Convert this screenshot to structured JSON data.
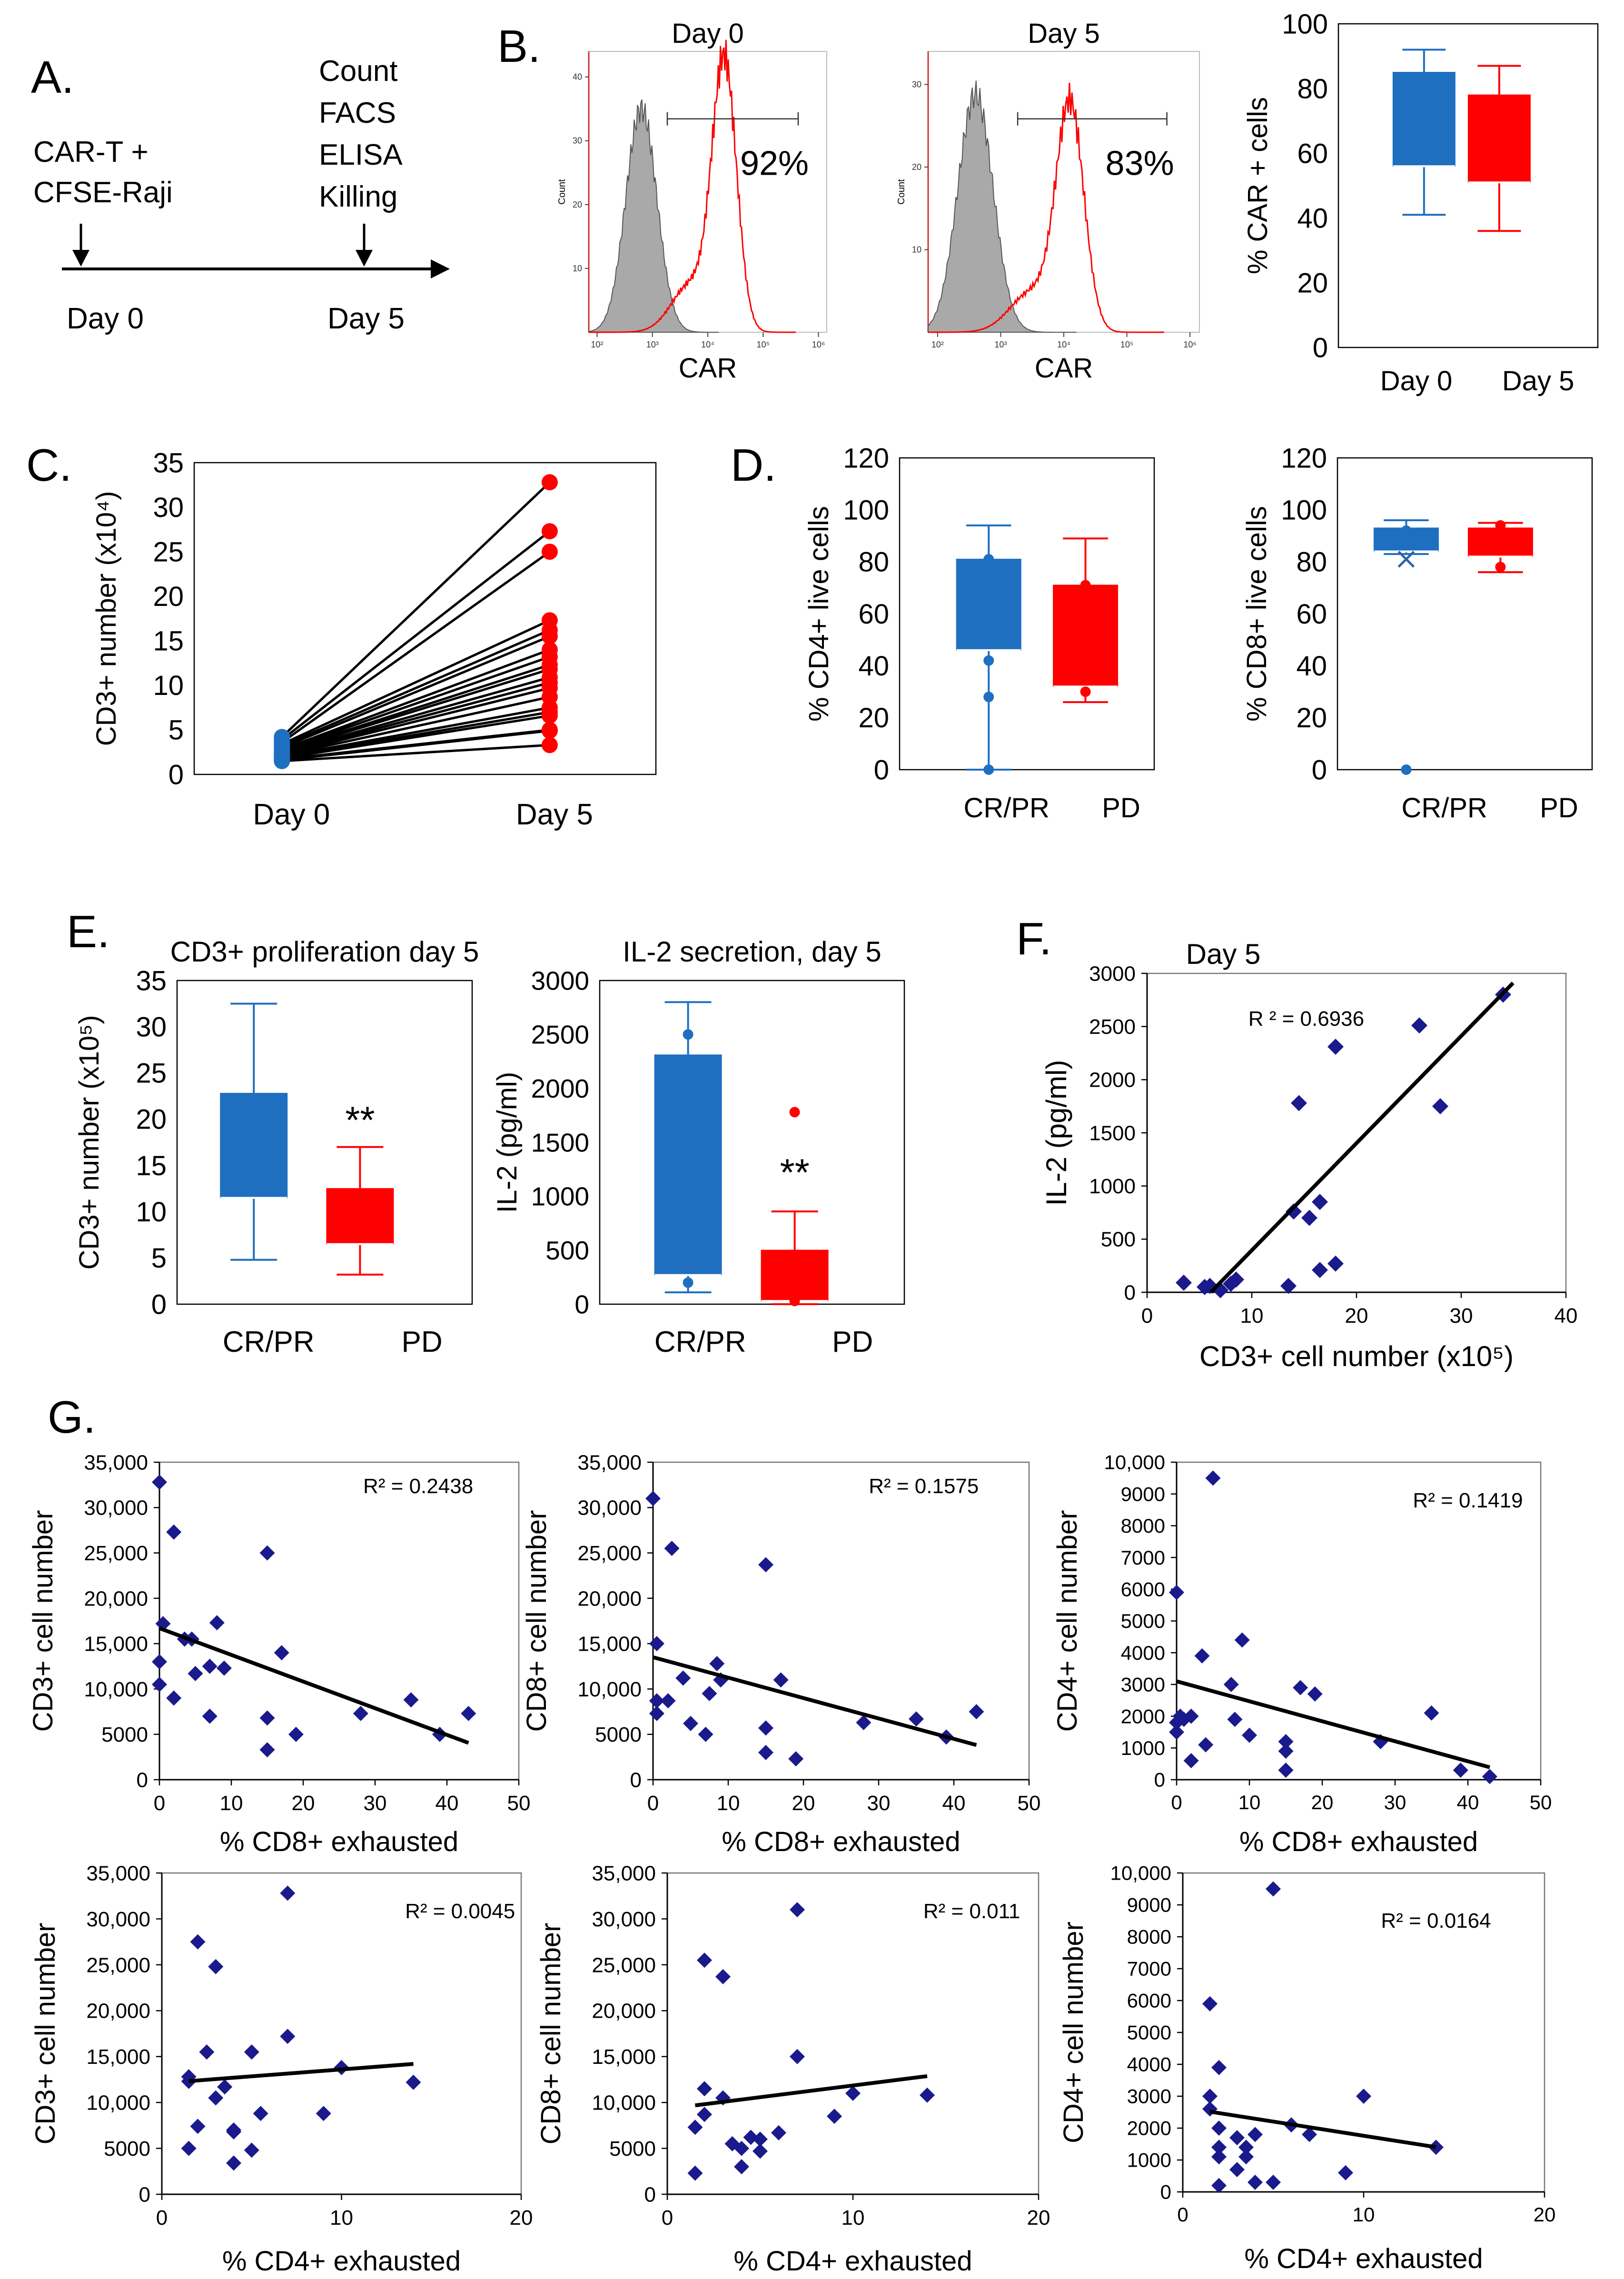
{
  "colors": {
    "blue": "#1f6fc1",
    "red": "#ff0000",
    "navy": "#1a1a8c",
    "gray": "#a9a9a9",
    "black": "#000000"
  },
  "panel_letters": {
    "A": "A.",
    "B": "B.",
    "C": "C.",
    "D": "D.",
    "E": "E.",
    "F": "F.",
    "G": "G."
  },
  "timeline": {
    "left_label_1": "CAR-T +",
    "left_label_2": "CFSE-Raji",
    "right_items": [
      "Count",
      "FACS",
      "ELISA",
      "Killing"
    ],
    "day0": "Day 0",
    "day5": "Day 5"
  },
  "chart_data": [
    {
      "id": "B_hist_day0",
      "type": "histogram",
      "title": "Day 0",
      "xlabel": "CAR",
      "ylabel": "Count",
      "xticks": [
        "10²",
        "10³",
        "10⁴",
        "10⁵",
        "10⁶"
      ],
      "yticks": [
        "10",
        "20",
        "30",
        "40"
      ],
      "control_peak_decade": 2.8,
      "car_peak_decade": 4.3,
      "gate_label": "92%"
    },
    {
      "id": "B_hist_day5",
      "type": "histogram",
      "title": "Day 5",
      "xlabel": "CAR",
      "ylabel": "Count",
      "xticks": [
        "10²",
        "10³",
        "10⁴",
        "10⁵",
        "10⁶"
      ],
      "yticks": [
        "10",
        "20",
        "30"
      ],
      "control_peak_decade": 2.6,
      "car_peak_decade": 4.1,
      "gate_label": "83%"
    },
    {
      "id": "B_box",
      "type": "box",
      "ylabel": "% CAR + cells",
      "ylim": [
        0,
        100
      ],
      "yticks": [
        0,
        20,
        40,
        60,
        80,
        100
      ],
      "categories": [
        "Day 0",
        "Day 5"
      ],
      "boxes": [
        {
          "name": "Day 0",
          "min": 41,
          "q1": 56,
          "median": 56,
          "q3": 85,
          "max": 92,
          "color": "#1f6fc1"
        },
        {
          "name": "Day 5",
          "min": 36,
          "q1": 51,
          "median": 51,
          "q3": 78,
          "max": 87,
          "color": "#ff0000"
        }
      ]
    },
    {
      "id": "C",
      "type": "line",
      "ylabel": "CD3+ number (x10⁴)",
      "ylim": [
        0,
        35
      ],
      "yticks": [
        0,
        5,
        10,
        15,
        20,
        25,
        30,
        35
      ],
      "categories": [
        "Day 0",
        "Day 5"
      ],
      "day0": [
        4.2,
        3.9,
        3.6,
        3.4,
        3.2,
        3.0,
        2.8,
        2.7,
        2.6,
        2.5,
        2.4,
        2.3,
        2.2,
        2.1,
        2.0,
        1.9,
        1.8,
        1.7,
        1.6,
        1.5
      ],
      "day5": [
        32.8,
        27.3,
        25.0,
        17.3,
        16.2,
        15.5,
        14.0,
        13.2,
        12.3,
        11.8,
        10.9,
        10.3,
        9.7,
        8.7,
        7.5,
        7.0,
        6.6,
        5.0,
        4.9,
        3.3
      ]
    },
    {
      "id": "D_cd4",
      "type": "box",
      "ylabel": "% CD4+ live cells",
      "ylim": [
        0,
        120
      ],
      "yticks": [
        0,
        20,
        40,
        60,
        80,
        100,
        120
      ],
      "categories": [
        "CR/PR",
        "PD"
      ],
      "boxes": [
        {
          "name": "CR/PR",
          "min": 0,
          "q1": 46,
          "median": 46,
          "q3": 81,
          "max": 94,
          "color": "#1f6fc1",
          "points": [
            0,
            28,
            42,
            81
          ]
        },
        {
          "name": "PD",
          "min": 26,
          "q1": 32,
          "median": 32,
          "q3": 71,
          "max": 89,
          "color": "#ff0000",
          "points": [
            30,
            71
          ]
        }
      ]
    },
    {
      "id": "D_cd8",
      "type": "box",
      "ylabel": "% CD8+ live cells",
      "ylim": [
        0,
        120
      ],
      "yticks": [
        0,
        20,
        40,
        60,
        80,
        100,
        120
      ],
      "categories": [
        "CR/PR",
        "PD"
      ],
      "boxes": [
        {
          "name": "CR/PR",
          "min": 83,
          "q1": 84,
          "median": 84,
          "q3": 93,
          "max": 96,
          "mean": 81,
          "color": "#1f6fc1",
          "points": [
            0,
            92
          ]
        },
        {
          "name": "PD",
          "min": 76,
          "q1": 82,
          "median": 82,
          "q3": 93,
          "max": 95,
          "color": "#ff0000",
          "points": [
            78,
            94
          ]
        }
      ]
    },
    {
      "id": "E_prolif",
      "type": "box",
      "title": "CD3+ proliferation day 5",
      "ylabel": "CD3+ number (x10⁵)",
      "ylim": [
        0,
        35
      ],
      "yticks": [
        0,
        5,
        10,
        15,
        20,
        25,
        30,
        35
      ],
      "categories": [
        "CR/PR",
        "PD"
      ],
      "boxes": [
        {
          "name": "CR/PR",
          "min": 4.8,
          "q1": 11.5,
          "median": 11.5,
          "q3": 22.8,
          "max": 32.5,
          "color": "#1f6fc1"
        },
        {
          "name": "PD",
          "min": 3.2,
          "q1": 6.5,
          "median": 6.5,
          "q3": 12.5,
          "max": 17.0,
          "color": "#ff0000"
        }
      ],
      "annotation": "**"
    },
    {
      "id": "E_il2",
      "type": "box",
      "title": "IL-2 secretion, day 5",
      "ylabel": "IL-2 (pg/ml)",
      "ylim": [
        0,
        3000
      ],
      "yticks": [
        0,
        500,
        1000,
        1500,
        2000,
        2500,
        3000
      ],
      "categories": [
        "CR/PR",
        "PD"
      ],
      "boxes": [
        {
          "name": "CR/PR",
          "min": 110,
          "q1": 270,
          "median": 270,
          "q3": 2310,
          "max": 2800,
          "color": "#1f6fc1",
          "points": [
            200,
            2500
          ]
        },
        {
          "name": "PD",
          "min": 0,
          "q1": 30,
          "median": 30,
          "q3": 500,
          "max": 860,
          "color": "#ff0000",
          "points": [
            30,
            1780
          ]
        }
      ],
      "annotation": "**"
    },
    {
      "id": "F",
      "type": "scatter",
      "title": "Day 5",
      "xlabel": "CD3+ cell number (x10⁵)",
      "ylabel": "IL-2 (pg/ml)",
      "xlim": [
        0,
        40
      ],
      "ylim": [
        0,
        3000
      ],
      "xticks": [
        0,
        10,
        20,
        30,
        40
      ],
      "yticks": [
        0,
        500,
        1000,
        1500,
        2000,
        2500,
        3000
      ],
      "r2": "R ² = 0.6936",
      "points": [
        [
          3.5,
          90
        ],
        [
          5.5,
          50
        ],
        [
          6.0,
          60
        ],
        [
          7.0,
          20
        ],
        [
          8.0,
          80
        ],
        [
          8.5,
          120
        ],
        [
          13.5,
          60
        ],
        [
          14.0,
          760
        ],
        [
          14.5,
          1780
        ],
        [
          15.5,
          700
        ],
        [
          16.5,
          850
        ],
        [
          16.5,
          210
        ],
        [
          18.0,
          2310
        ],
        [
          18.0,
          270
        ],
        [
          26.0,
          2510
        ],
        [
          28.0,
          1750
        ],
        [
          34.0,
          2800
        ]
      ],
      "fit": {
        "slope": 100.8,
        "intercept": -613
      }
    },
    {
      "id": "G1",
      "type": "scatter",
      "xlabel": "% CD8+ exhausted",
      "ylabel": "CD3+ cell number",
      "xlim": [
        0,
        50
      ],
      "ylim": [
        0,
        35000
      ],
      "xticks": [
        0,
        10,
        20,
        30,
        40,
        50
      ],
      "yticks": [
        "0",
        "5000",
        "10,000",
        "15,000",
        "20,000",
        "25,000",
        "30,000",
        "35,000"
      ],
      "r2": "R² = 0.2438",
      "points": [
        [
          0,
          32800
        ],
        [
          0,
          13000
        ],
        [
          0,
          10500
        ],
        [
          0.5,
          17200
        ],
        [
          2,
          27300
        ],
        [
          2,
          9000
        ],
        [
          3.5,
          15500
        ],
        [
          4.5,
          15500
        ],
        [
          5,
          11700
        ],
        [
          7,
          12500
        ],
        [
          7,
          7000
        ],
        [
          8,
          17300
        ],
        [
          9,
          12300
        ],
        [
          15,
          25000
        ],
        [
          15,
          6800
        ],
        [
          15,
          3300
        ],
        [
          17,
          14000
        ],
        [
          19,
          5000
        ],
        [
          28,
          7300
        ],
        [
          35,
          8800
        ],
        [
          39,
          5000
        ],
        [
          43,
          7300
        ]
      ],
      "fit": {
        "slope": -294,
        "intercept": 16700,
        "x_range": [
          0,
          43
        ]
      }
    },
    {
      "id": "G2",
      "type": "scatter",
      "xlabel": "% CD8+ exhausted",
      "ylabel": "CD8+ cell number",
      "xlim": [
        0,
        50
      ],
      "ylim": [
        0,
        35000
      ],
      "xticks": [
        0,
        10,
        20,
        30,
        40,
        50
      ],
      "yticks": [
        "0",
        "5000",
        "10,000",
        "15,000",
        "20,000",
        "25,000",
        "30,000",
        "35,000"
      ],
      "r2": "R² = 0.1575",
      "points": [
        [
          0,
          31000
        ],
        [
          0.5,
          15000
        ],
        [
          0.5,
          8700
        ],
        [
          0.5,
          7300
        ],
        [
          2,
          8700
        ],
        [
          2.5,
          25500
        ],
        [
          4,
          11200
        ],
        [
          5,
          6200
        ],
        [
          7,
          5000
        ],
        [
          7.5,
          9500
        ],
        [
          8.5,
          12800
        ],
        [
          9,
          11000
        ],
        [
          15,
          23700
        ],
        [
          15,
          5700
        ],
        [
          15,
          3000
        ],
        [
          17,
          11000
        ],
        [
          19,
          2300
        ],
        [
          28,
          6300
        ],
        [
          35,
          6700
        ],
        [
          39,
          4700
        ],
        [
          43,
          7500
        ]
      ],
      "fit": {
        "slope": -225,
        "intercept": 13500,
        "x_range": [
          0,
          43
        ]
      }
    },
    {
      "id": "G3",
      "type": "scatter",
      "xlabel": "% CD8+ exhausted",
      "ylabel": "CD4+ cell number",
      "xlim": [
        0,
        50
      ],
      "ylim": [
        0,
        10000
      ],
      "xticks": [
        0,
        10,
        20,
        30,
        40,
        50
      ],
      "yticks": [
        "0",
        "1000",
        "2000",
        "3000",
        "4000",
        "5000",
        "6000",
        "7000",
        "8000",
        "9000",
        "10,000"
      ],
      "r2": "R² = 0.1419",
      "points": [
        [
          0,
          5900
        ],
        [
          0,
          1800
        ],
        [
          0,
          1500
        ],
        [
          0.5,
          2000
        ],
        [
          1,
          1900
        ],
        [
          2,
          2000
        ],
        [
          2,
          600
        ],
        [
          3.5,
          3900
        ],
        [
          4,
          1100
        ],
        [
          5,
          9500
        ],
        [
          7.5,
          3000
        ],
        [
          8,
          1900
        ],
        [
          9,
          4400
        ],
        [
          10,
          1400
        ],
        [
          15,
          1200
        ],
        [
          15,
          900
        ],
        [
          15,
          300
        ],
        [
          17,
          2900
        ],
        [
          19,
          2700
        ],
        [
          28,
          1200
        ],
        [
          35,
          2100
        ],
        [
          39,
          300
        ],
        [
          43,
          100
        ]
      ],
      "fit": {
        "slope": -63,
        "intercept": 3100,
        "x_range": [
          0,
          43
        ]
      }
    },
    {
      "id": "G4",
      "type": "scatter",
      "xlabel": "% CD4+ exhausted",
      "ylabel": "CD3+ cell number",
      "xlim": [
        0,
        20
      ],
      "ylim": [
        0,
        35000
      ],
      "xticks": [
        0,
        10,
        20
      ],
      "yticks": [
        "0",
        "5000",
        "10,000",
        "15,000",
        "20,000",
        "25,000",
        "30,000",
        "35,000"
      ],
      "r2": "R² = 0.0045",
      "points": [
        [
          1.5,
          12800
        ],
        [
          1.5,
          12300
        ],
        [
          1.5,
          5000
        ],
        [
          2,
          7400
        ],
        [
          2,
          27500
        ],
        [
          2.5,
          15500
        ],
        [
          3,
          10500
        ],
        [
          3,
          24800
        ],
        [
          3.5,
          11700
        ],
        [
          4,
          7000
        ],
        [
          4,
          6800
        ],
        [
          4,
          3400
        ],
        [
          5,
          15500
        ],
        [
          5,
          4800
        ],
        [
          5.5,
          8800
        ],
        [
          7,
          32800
        ],
        [
          7,
          17200
        ],
        [
          9,
          8800
        ],
        [
          10,
          13800
        ],
        [
          14,
          12200
        ]
      ],
      "fit": {
        "slope": 150,
        "intercept": 12100,
        "x_range": [
          1.5,
          14
        ]
      }
    },
    {
      "id": "G5",
      "type": "scatter",
      "xlabel": "% CD4+ exhausted",
      "ylabel": "CD8+ cell number",
      "xlim": [
        0,
        20
      ],
      "ylim": [
        0,
        35000
      ],
      "xticks": [
        0,
        10,
        20
      ],
      "yticks": [
        "0",
        "5000",
        "10,000",
        "15,000",
        "20,000",
        "25,000",
        "30,000",
        "35,000"
      ],
      "r2": "R² = 0.011",
      "points": [
        [
          1.5,
          2300
        ],
        [
          1.5,
          7300
        ],
        [
          2,
          11500
        ],
        [
          2,
          25500
        ],
        [
          2,
          8700
        ],
        [
          3,
          23700
        ],
        [
          3,
          10500
        ],
        [
          3.5,
          5500
        ],
        [
          4,
          5000
        ],
        [
          4,
          3000
        ],
        [
          4.5,
          6200
        ],
        [
          5,
          4700
        ],
        [
          5,
          6000
        ],
        [
          6,
          6700
        ],
        [
          7,
          31000
        ],
        [
          7,
          15000
        ],
        [
          9,
          8500
        ],
        [
          10,
          11000
        ],
        [
          14,
          10800
        ]
      ],
      "fit": {
        "slope": 255,
        "intercept": 9300,
        "x_range": [
          1.5,
          14
        ]
      }
    },
    {
      "id": "G6",
      "type": "scatter",
      "xlabel": "% CD4+ exhausted",
      "ylabel": "CD4+ cell number",
      "xlim": [
        0,
        20
      ],
      "ylim": [
        0,
        10000
      ],
      "xticks": [
        0,
        10,
        20
      ],
      "yticks": [
        "0",
        "1000",
        "2000",
        "3000",
        "4000",
        "5000",
        "6000",
        "7000",
        "8000",
        "9000",
        "10,000"
      ],
      "r2": "R² = 0.0164",
      "points": [
        [
          1.5,
          5900
        ],
        [
          1.5,
          3000
        ],
        [
          1.5,
          2600
        ],
        [
          2,
          3900
        ],
        [
          2,
          2000
        ],
        [
          2,
          1400
        ],
        [
          2,
          1100
        ],
        [
          2,
          200
        ],
        [
          3,
          1700
        ],
        [
          3,
          700
        ],
        [
          3.5,
          1400
        ],
        [
          3.5,
          1100
        ],
        [
          4,
          300
        ],
        [
          4,
          1800
        ],
        [
          5,
          9500
        ],
        [
          5,
          300
        ],
        [
          6,
          2100
        ],
        [
          7,
          1800
        ],
        [
          9,
          600
        ],
        [
          10,
          3000
        ],
        [
          14,
          1400
        ]
      ],
      "fit": {
        "slope": -89,
        "intercept": 2650,
        "x_range": [
          1.5,
          14
        ]
      }
    }
  ]
}
